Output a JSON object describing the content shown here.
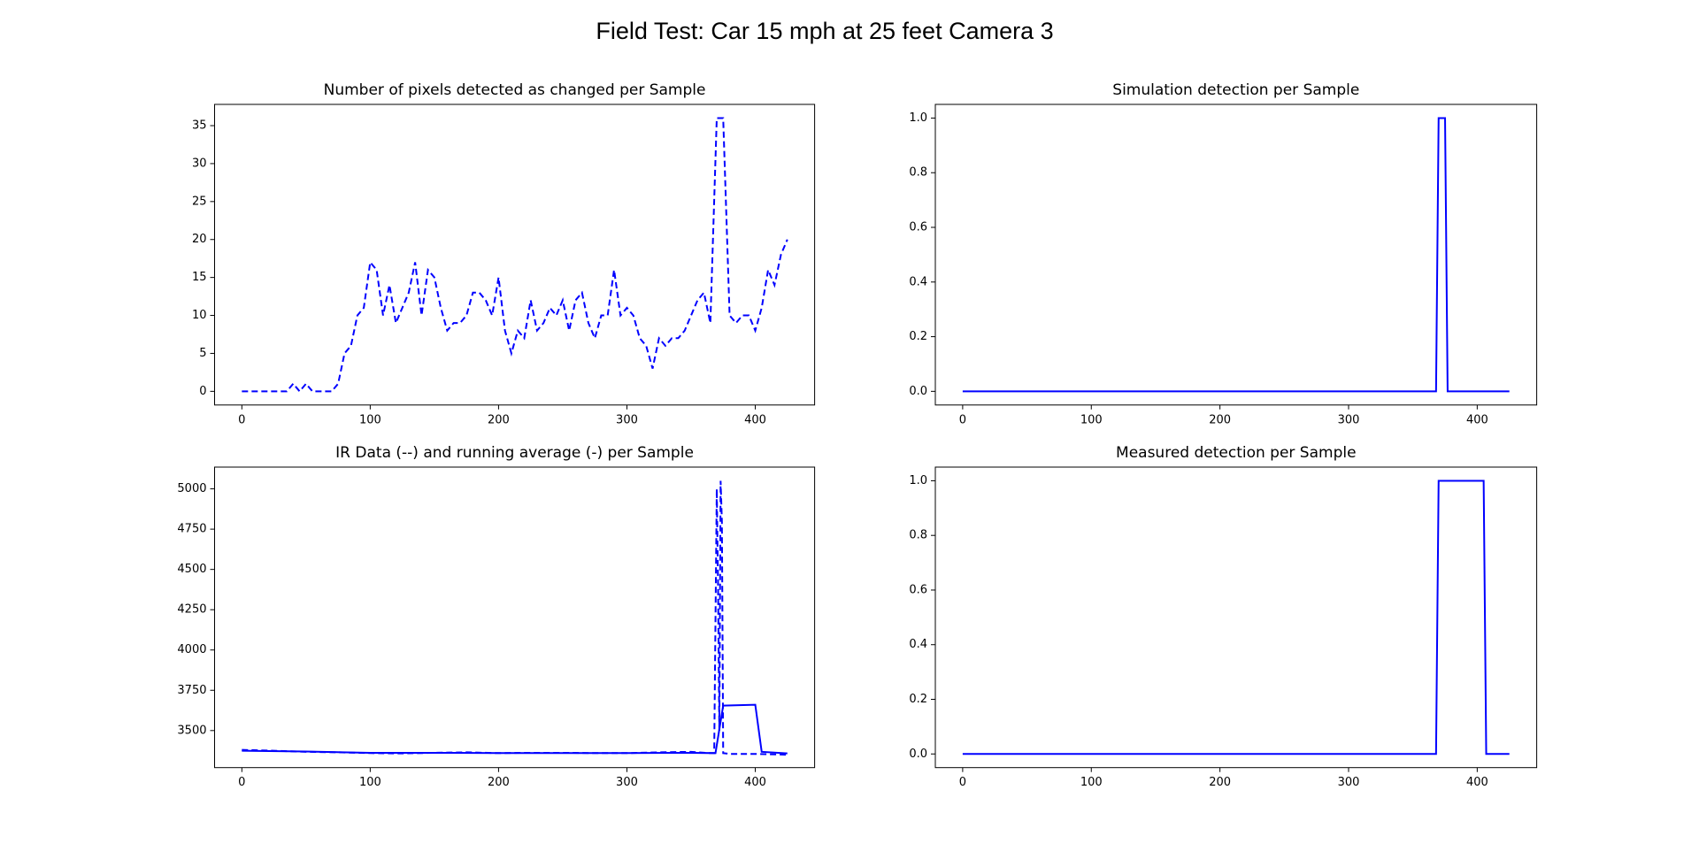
{
  "title": "Field Test: Car 15 mph at 25 feet Camera 3",
  "chart_data": [
    {
      "type": "line",
      "title": "Number of pixels detected as changed per Sample",
      "x": [
        0,
        5,
        10,
        15,
        20,
        25,
        30,
        35,
        40,
        45,
        50,
        55,
        60,
        65,
        70,
        75,
        80,
        85,
        90,
        95,
        100,
        105,
        110,
        115,
        120,
        125,
        130,
        135,
        140,
        145,
        150,
        155,
        160,
        165,
        170,
        175,
        180,
        185,
        190,
        195,
        200,
        205,
        210,
        215,
        220,
        225,
        230,
        235,
        240,
        245,
        250,
        255,
        260,
        265,
        270,
        275,
        280,
        285,
        290,
        295,
        300,
        305,
        310,
        315,
        320,
        325,
        330,
        335,
        340,
        345,
        350,
        355,
        360,
        365,
        370,
        375,
        380,
        385,
        390,
        395,
        400,
        405,
        410,
        415,
        420,
        425
      ],
      "values": [
        0,
        0,
        0,
        0,
        0,
        0,
        0,
        0,
        1,
        0,
        1,
        0,
        0,
        0,
        0,
        1,
        5,
        6,
        10,
        11,
        17,
        16,
        10,
        14,
        9,
        11,
        13,
        17,
        10,
        16,
        15,
        11,
        8,
        9,
        9,
        10,
        13,
        13,
        12,
        10,
        15,
        8,
        5,
        8,
        7,
        12,
        8,
        9,
        11,
        10,
        12,
        8,
        12,
        13,
        9,
        7,
        10,
        10,
        16,
        10,
        11,
        10,
        7,
        6,
        3,
        7,
        6,
        7,
        7,
        8,
        10,
        12,
        13,
        9,
        36,
        36,
        10,
        9,
        10,
        10,
        8,
        11,
        16,
        14,
        18,
        20
      ],
      "color": "#0000ff",
      "linestyle": "dashed",
      "xlim": [
        -21.25,
        446.25
      ],
      "ylim": [
        -1.8,
        37.8
      ],
      "xticks": [
        0,
        100,
        200,
        300,
        400
      ],
      "yticks": [
        0,
        5,
        10,
        15,
        20,
        25,
        30,
        35
      ]
    },
    {
      "type": "line",
      "title": "Simulation detection per Sample",
      "x": [
        0,
        368,
        370,
        375,
        377,
        425
      ],
      "values": [
        0,
        0,
        1,
        1,
        0,
        0
      ],
      "color": "#0000ff",
      "linestyle": "solid",
      "xlim": [
        -21.25,
        446.25
      ],
      "ylim": [
        -0.05,
        1.05
      ],
      "xticks": [
        0,
        100,
        200,
        300,
        400
      ],
      "yticks": [
        {
          "value": 0,
          "label": "0.0"
        },
        0.2,
        0.4,
        0.6,
        0.8,
        {
          "value": 1,
          "label": "1.0"
        }
      ]
    },
    {
      "type": "line",
      "title": "IR Data (--) and running average (-) per Sample",
      "series": [
        {
          "x": [
            0,
            25,
            50,
            75,
            100,
            125,
            150,
            175,
            200,
            225,
            250,
            275,
            300,
            325,
            350,
            365,
            368,
            370,
            371,
            372,
            373,
            374,
            375,
            380,
            400,
            425
          ],
          "values": [
            3380,
            3375,
            3368,
            3365,
            3360,
            3358,
            3362,
            3365,
            3360,
            3362,
            3362,
            3360,
            3360,
            3365,
            3368,
            3360,
            3360,
            5000,
            4400,
            3500,
            5050,
            4800,
            3360,
            3355,
            3355,
            3350
          ],
          "color": "#0000ff",
          "linestyle": "dashed"
        },
        {
          "x": [
            0,
            50,
            100,
            150,
            200,
            250,
            300,
            350,
            369,
            375,
            400,
            405,
            425
          ],
          "values": [
            3375,
            3370,
            3362,
            3362,
            3360,
            3360,
            3360,
            3362,
            3360,
            3655,
            3660,
            3368,
            3358
          ],
          "color": "#0000ff",
          "linestyle": "solid"
        }
      ],
      "xlim": [
        -21.25,
        446.25
      ],
      "ylim": [
        3270,
        5135
      ],
      "xticks": [
        0,
        100,
        200,
        300,
        400
      ],
      "yticks": [
        3500,
        3750,
        4000,
        4250,
        4500,
        4750,
        5000
      ]
    },
    {
      "type": "line",
      "title": "Measured detection per Sample",
      "x": [
        0,
        368,
        370,
        405,
        407,
        425
      ],
      "values": [
        0,
        0,
        1,
        1,
        0,
        0
      ],
      "color": "#0000ff",
      "linestyle": "solid",
      "xlim": [
        -21.25,
        446.25
      ],
      "ylim": [
        -0.05,
        1.05
      ],
      "xticks": [
        0,
        100,
        200,
        300,
        400
      ],
      "yticks": [
        {
          "value": 0,
          "label": "0.0"
        },
        0.2,
        0.4,
        0.6,
        0.8,
        {
          "value": 1,
          "label": "1.0"
        }
      ]
    }
  ]
}
